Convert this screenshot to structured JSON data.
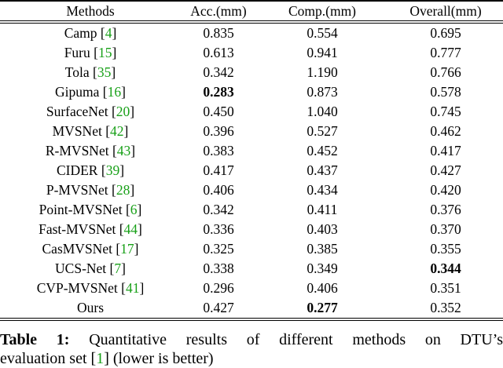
{
  "colors": {
    "citation_green": "#18a018",
    "text": "#000000",
    "background": "#ffffff"
  },
  "table": {
    "columns": [
      "Methods",
      "Acc.(mm)",
      "Comp.(mm)",
      "Overall(mm)"
    ],
    "rows": [
      {
        "method": "Camp",
        "cite": "4",
        "acc": "0.835",
        "comp": "0.554",
        "overall": "0.695",
        "bold": null
      },
      {
        "method": "Furu",
        "cite": "15",
        "acc": "0.613",
        "comp": "0.941",
        "overall": "0.777",
        "bold": null
      },
      {
        "method": "Tola",
        "cite": "35",
        "acc": "0.342",
        "comp": "1.190",
        "overall": "0.766",
        "bold": null
      },
      {
        "method": "Gipuma",
        "cite": "16",
        "acc": "0.283",
        "comp": "0.873",
        "overall": "0.578",
        "bold": "acc"
      },
      {
        "method": "SurfaceNet",
        "cite": "20",
        "acc": "0.450",
        "comp": "1.040",
        "overall": "0.745",
        "bold": null
      },
      {
        "method": "MVSNet",
        "cite": "42",
        "acc": "0.396",
        "comp": "0.527",
        "overall": "0.462",
        "bold": null
      },
      {
        "method": "R-MVSNet",
        "cite": "43",
        "acc": "0.383",
        "comp": "0.452",
        "overall": "0.417",
        "bold": null
      },
      {
        "method": "CIDER",
        "cite": "39",
        "acc": "0.417",
        "comp": "0.437",
        "overall": "0.427",
        "bold": null
      },
      {
        "method": "P-MVSNet",
        "cite": "28",
        "acc": "0.406",
        "comp": "0.434",
        "overall": "0.420",
        "bold": null
      },
      {
        "method": "Point-MVSNet",
        "cite": "6",
        "acc": "0.342",
        "comp": "0.411",
        "overall": "0.376",
        "bold": null
      },
      {
        "method": "Fast-MVSNet",
        "cite": "44",
        "acc": "0.336",
        "comp": "0.403",
        "overall": "0.370",
        "bold": null
      },
      {
        "method": "CasMVSNet",
        "cite": "17",
        "acc": "0.325",
        "comp": "0.385",
        "overall": "0.355",
        "bold": null
      },
      {
        "method": "UCS-Net",
        "cite": "7",
        "acc": "0.338",
        "comp": "0.349",
        "overall": "0.344",
        "bold": "overall"
      },
      {
        "method": "CVP-MVSNet",
        "cite": "41",
        "acc": "0.296",
        "comp": "0.406",
        "overall": "0.351",
        "bold": null
      },
      {
        "method": "Ours",
        "cite": null,
        "acc": "0.427",
        "comp": "0.277",
        "overall": "0.352",
        "bold": "comp"
      }
    ]
  },
  "caption": {
    "label": "Table 1:",
    "line1": "Quantitative results of different methods on DTU’s",
    "line2_pre": "evaluation set [",
    "line2_cite": "1",
    "line2_post": "] (lower is better)"
  }
}
